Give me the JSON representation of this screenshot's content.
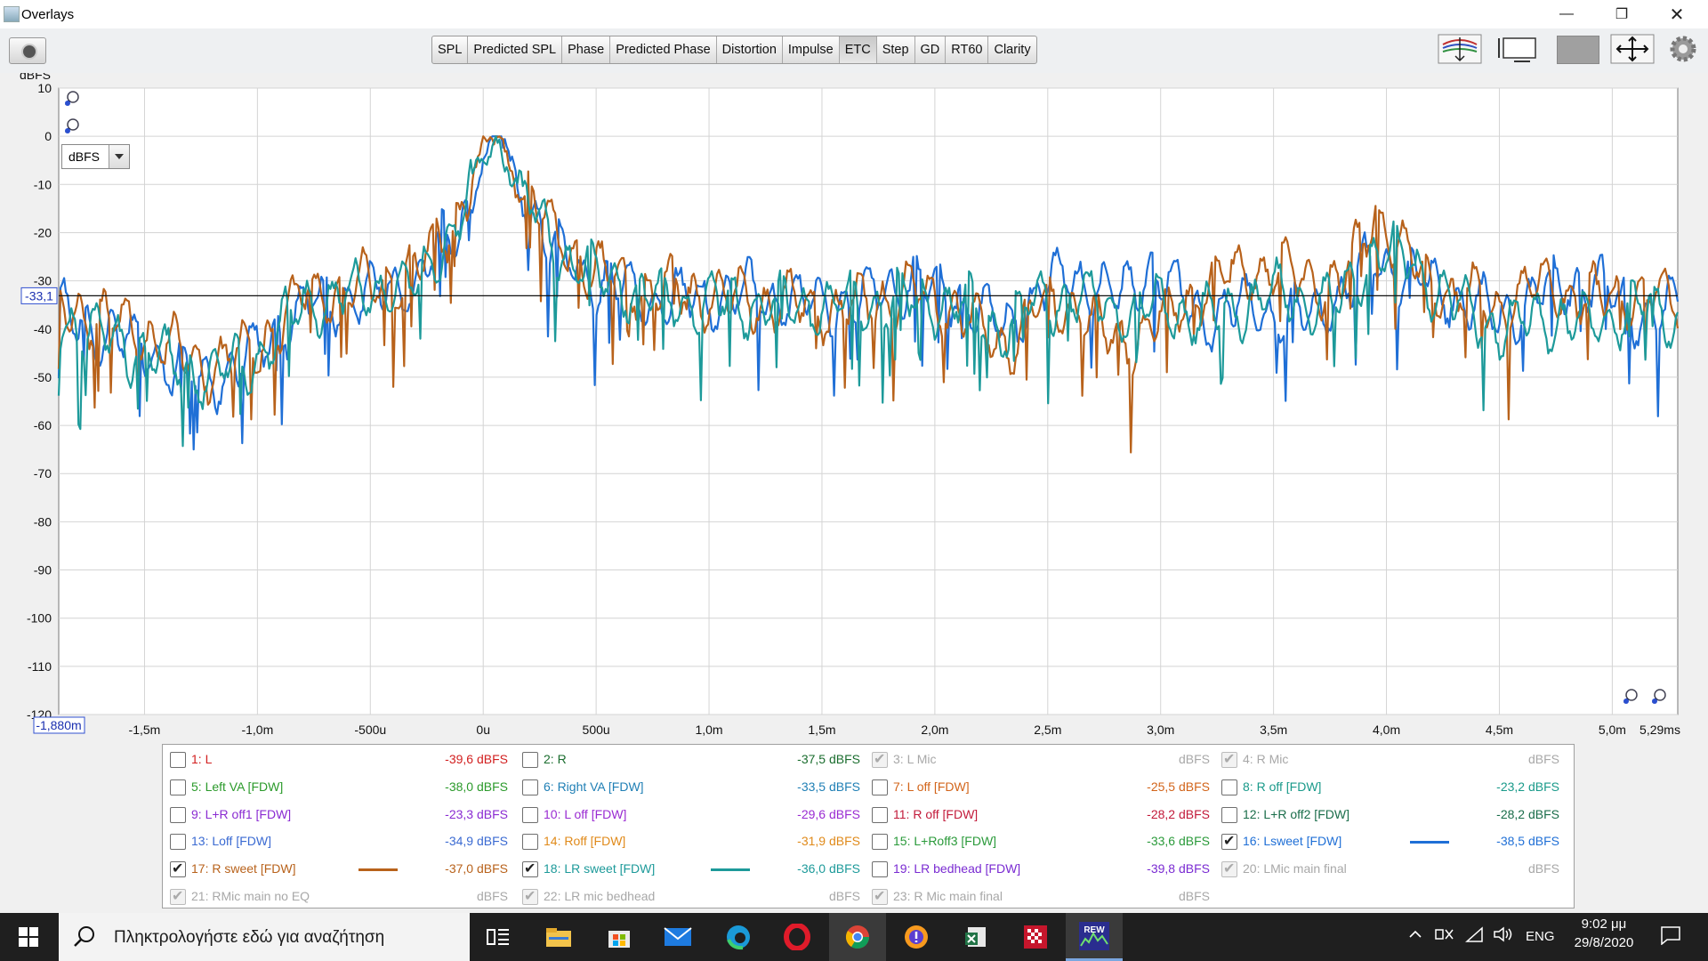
{
  "window": {
    "title": "Overlays"
  },
  "tabs": [
    "SPL",
    "Predicted SPL",
    "Phase",
    "Predicted Phase",
    "Distortion",
    "Impulse",
    "ETC",
    "Step",
    "GD",
    "RT60",
    "Clarity"
  ],
  "active_tab": "ETC",
  "units_dropdown": "dBFS",
  "cursor": {
    "y_readout": "-33,1",
    "x_readout": "-1,880m"
  },
  "chart_data": {
    "type": "line",
    "ylabel": "dBFS",
    "ylim": [
      -120,
      10
    ],
    "xlim_ms": [
      -1.88,
      5.29
    ],
    "y_ticks": [
      "10",
      "0",
      "-10",
      "-20",
      "-30",
      "-40",
      "-50",
      "-60",
      "-70",
      "-80",
      "-90",
      "-100",
      "-110",
      "-120"
    ],
    "x_ticks": [
      "-1,5m",
      "-1,0m",
      "-500u",
      "0u",
      "500u",
      "1,0m",
      "1,5m",
      "2,0m",
      "2,5m",
      "3,0m",
      "3,5m",
      "4,0m",
      "4,5m",
      "5,0m",
      "5,29ms"
    ],
    "grid": true,
    "series": [
      {
        "name": "16: Lsweet [FDW]",
        "color": "#1f6fd6",
        "x": [
          -1.88,
          -1.5,
          -1.25,
          -1.0,
          -0.8,
          -0.5,
          -0.3,
          -0.1,
          0.0,
          0.07,
          0.15,
          0.3,
          0.5,
          0.8,
          1.2,
          1.6,
          1.9,
          2.1,
          2.3,
          2.45,
          2.6,
          2.8,
          2.95,
          3.2,
          3.4,
          3.6,
          3.8,
          3.95,
          4.1,
          4.3,
          4.5,
          4.7,
          4.9,
          5.1,
          5.29
        ],
        "values": [
          -37,
          -44,
          -52,
          -45,
          -35,
          -33,
          -30,
          -18,
          -6,
          0,
          -10,
          -23,
          -30,
          -34,
          -33,
          -35,
          -30,
          -33,
          -40,
          -33,
          -28,
          -34,
          -27,
          -38,
          -35,
          -38,
          -33,
          -26,
          -29,
          -33,
          -38,
          -32,
          -30,
          -37,
          -36
        ]
      },
      {
        "name": "17: R sweet [FDW]",
        "color": "#b8621b",
        "x": [
          -1.88,
          -1.5,
          -1.25,
          -1.0,
          -0.8,
          -0.5,
          -0.3,
          -0.1,
          0.0,
          0.07,
          0.15,
          0.3,
          0.5,
          0.8,
          1.2,
          1.6,
          1.9,
          2.1,
          2.3,
          2.45,
          2.6,
          2.8,
          2.95,
          3.2,
          3.4,
          3.6,
          3.8,
          3.95,
          4.1,
          4.3,
          4.5,
          4.7,
          4.9,
          5.1,
          5.29
        ],
        "values": [
          -35,
          -41,
          -48,
          -44,
          -33,
          -31,
          -28,
          -15,
          -4,
          0,
          -8,
          -20,
          -28,
          -32,
          -34,
          -36,
          -32,
          -36,
          -44,
          -36,
          -34,
          -43,
          -40,
          -31,
          -27,
          -29,
          -31,
          -15,
          -26,
          -33,
          -35,
          -31,
          -34,
          -33,
          -34
        ]
      },
      {
        "name": "18: LR sweet [FDW]",
        "color": "#1d9a9a",
        "x": [
          -1.88,
          -1.5,
          -1.25,
          -1.0,
          -0.8,
          -0.5,
          -0.3,
          -0.1,
          0.0,
          0.07,
          0.15,
          0.3,
          0.5,
          0.8,
          1.2,
          1.6,
          1.9,
          2.1,
          2.3,
          2.45,
          2.6,
          2.8,
          2.95,
          3.2,
          3.4,
          3.6,
          3.8,
          3.95,
          4.1,
          4.3,
          4.5,
          4.7,
          4.9,
          5.1,
          5.29
        ],
        "values": [
          -38,
          -45,
          -50,
          -46,
          -35,
          -32,
          -31,
          -17,
          -5,
          0,
          -9,
          -22,
          -29,
          -34,
          -35,
          -35,
          -34,
          -35,
          -40,
          -34,
          -33,
          -36,
          -35,
          -38,
          -34,
          -33,
          -35,
          -23,
          -26,
          -35,
          -40,
          -37,
          -40,
          -35,
          -38
        ]
      }
    ]
  },
  "legend": [
    [
      {
        "label": "1: L",
        "value": "-39,6 dBFS",
        "color": "#d22020",
        "checked": false,
        "enabled": true
      },
      {
        "label": "2: R",
        "value": "-37,5 dBFS",
        "color": "#1a6d2e",
        "checked": false,
        "enabled": true
      },
      {
        "label": "3: L Mic",
        "value": "dBFS",
        "color": "#a8a8a8",
        "checked": true,
        "enabled": false
      },
      {
        "label": "4: R Mic",
        "value": "dBFS",
        "color": "#a8a8a8",
        "checked": true,
        "enabled": false
      }
    ],
    [
      {
        "label": "5: Left VA [FDW]",
        "value": "-38,0 dBFS",
        "color": "#2b9a2b",
        "checked": false,
        "enabled": true
      },
      {
        "label": "6: Right VA [FDW]",
        "value": "-33,5 dBFS",
        "color": "#1f7fb5",
        "checked": false,
        "enabled": true
      },
      {
        "label": "7: L off [FDW]",
        "value": "-25,5 dBFS",
        "color": "#d2641a",
        "checked": false,
        "enabled": true
      },
      {
        "label": "8: R off [FDW]",
        "value": "-23,2 dBFS",
        "color": "#1a9a8a",
        "checked": false,
        "enabled": true
      }
    ],
    [
      {
        "label": "9: L+R off1 [FDW]",
        "value": "-23,3 dBFS",
        "color": "#8a2bd2",
        "checked": false,
        "enabled": true
      },
      {
        "label": "10: L off [FDW]",
        "value": "-29,6 dBFS",
        "color": "#9a2bd2",
        "checked": false,
        "enabled": true
      },
      {
        "label": "11: R off [FDW]",
        "value": "-28,2 dBFS",
        "color": "#c21a3a",
        "checked": false,
        "enabled": true
      },
      {
        "label": "12: L+R off2 [FDW]",
        "value": "-28,2 dBFS",
        "color": "#1a6d4a",
        "checked": false,
        "enabled": true
      }
    ],
    [
      {
        "label": "13: Loff [FDW]",
        "value": "-34,9 dBFS",
        "color": "#3a6ad2",
        "checked": false,
        "enabled": true
      },
      {
        "label": "14: Roff [FDW]",
        "value": "-31,9 dBFS",
        "color": "#e08a1a",
        "checked": false,
        "enabled": true
      },
      {
        "label": "15: L+Roff3 [FDW]",
        "value": "-33,6 dBFS",
        "color": "#2a9a3a",
        "checked": false,
        "enabled": true
      },
      {
        "label": "16: Lsweet [FDW]",
        "value": "-38,5 dBFS",
        "color": "#1f6fd6",
        "checked": true,
        "enabled": true,
        "swatch": true
      }
    ],
    [
      {
        "label": "17: R sweet [FDW]",
        "value": "-37,0 dBFS",
        "color": "#b8621b",
        "checked": true,
        "enabled": true,
        "swatch": true
      },
      {
        "label": "18: LR sweet [FDW]",
        "value": "-36,0 dBFS",
        "color": "#1d9a9a",
        "checked": true,
        "enabled": true,
        "swatch": true
      },
      {
        "label": "19: LR bedhead [FDW]",
        "value": "-39,8 dBFS",
        "color": "#7a2bd2",
        "checked": false,
        "enabled": true
      },
      {
        "label": "20: LMic main final",
        "value": "dBFS",
        "color": "#a8a8a8",
        "checked": true,
        "enabled": false
      }
    ],
    [
      {
        "label": "21: RMic main no EQ",
        "value": "dBFS",
        "color": "#a8a8a8",
        "checked": true,
        "enabled": false
      },
      {
        "label": "22: LR mic bedhead",
        "value": "dBFS",
        "color": "#a8a8a8",
        "checked": true,
        "enabled": false
      },
      {
        "label": "23: R Mic main final",
        "value": "dBFS",
        "color": "#a8a8a8",
        "checked": true,
        "enabled": false
      }
    ]
  ],
  "taskbar": {
    "search_placeholder": "Πληκτρολογήστε εδώ για αναζήτηση",
    "language": "ENG",
    "time": "9:02 μμ",
    "date": "29/8/2020",
    "rew_label": "REW"
  }
}
